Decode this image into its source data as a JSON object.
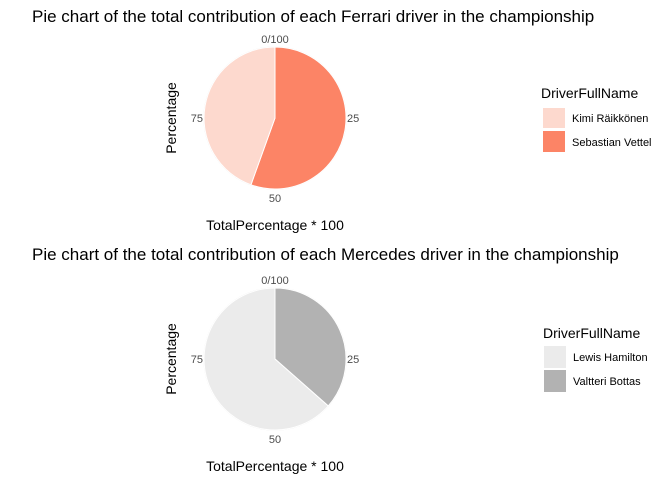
{
  "chart_data": [
    {
      "type": "pie",
      "title": "Pie chart of the total contribution of each Ferrari driver in the championship",
      "xlabel": "TotalPercentage * 100",
      "ylabel": "Percentage",
      "ticks": [
        "0/100",
        "25",
        "50",
        "75"
      ],
      "legend": {
        "title": "DriverFullName",
        "position": "right"
      },
      "series": [
        {
          "name": "Kimi Räikkönen",
          "value": 44.5,
          "color": "#FDD9CE"
        },
        {
          "name": "Sebastian Vettel",
          "value": 55.5,
          "color": "#FC8466"
        }
      ]
    },
    {
      "type": "pie",
      "title": "Pie chart of the total contribution of each Mercedes driver in the championship",
      "xlabel": "TotalPercentage * 100",
      "ylabel": "Percentage",
      "ticks": [
        "0/100",
        "25",
        "50",
        "75"
      ],
      "legend": {
        "title": "DriverFullName",
        "position": "right"
      },
      "series": [
        {
          "name": "Lewis Hamilton",
          "value": 63.5,
          "color": "#EBEBEB"
        },
        {
          "name": "Valtteri Bottas",
          "value": 36.5,
          "color": "#B2B2B2"
        }
      ]
    }
  ]
}
